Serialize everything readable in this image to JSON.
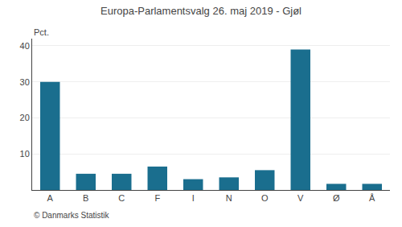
{
  "chart_data": {
    "type": "bar",
    "title": "Europa-Parlamentsvalg 26. maj 2019 - Gjøl",
    "ylabel": "Pct.",
    "annotations": [
      "© Danmarks Statistik"
    ],
    "categories": [
      "A",
      "B",
      "C",
      "F",
      "I",
      "N",
      "O",
      "V",
      "Ø",
      "Å"
    ],
    "values": [
      30.0,
      4.5,
      4.5,
      6.5,
      3.0,
      3.5,
      5.5,
      39.0,
      1.7,
      1.7
    ],
    "color": "#1a6e8e",
    "ylim": [
      0,
      42
    ],
    "yticks": [
      10,
      20,
      30,
      40
    ],
    "grid": true
  }
}
